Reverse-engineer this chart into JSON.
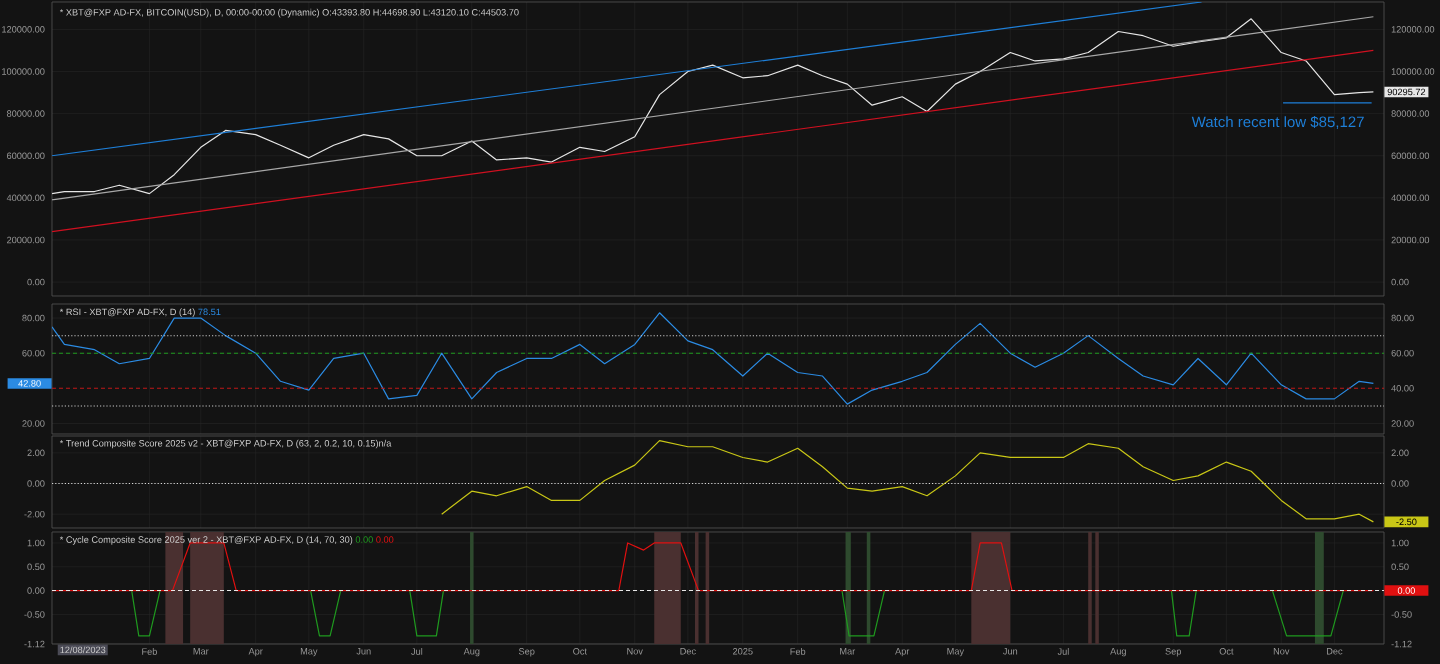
{
  "chart_data": [
    {
      "type": "line",
      "title": "* XBT@FXP AD-FX, BITCOIN(USD), D, 00:00-00:00 (Dynamic) O:43393.80 H:44698.90 L:43120.10 C:44503.70",
      "x": [
        "2023-12-08",
        "2023-12-15",
        "2024-01-01",
        "2024-01-15",
        "2024-02-01",
        "2024-02-15",
        "2024-03-01",
        "2024-03-15",
        "2024-04-01",
        "2024-04-15",
        "2024-05-01",
        "2024-05-15",
        "2024-06-01",
        "2024-06-15",
        "2024-07-01",
        "2024-07-15",
        "2024-08-01",
        "2024-08-15",
        "2024-09-01",
        "2024-09-15",
        "2024-10-01",
        "2024-10-15",
        "2024-11-01",
        "2024-11-15",
        "2024-12-01",
        "2024-12-15",
        "2025-01-01",
        "2025-01-15",
        "2025-02-01",
        "2025-02-15",
        "2025-03-01",
        "2025-03-15",
        "2025-04-01",
        "2025-04-15",
        "2025-05-01",
        "2025-05-15",
        "2025-06-01",
        "2025-06-15",
        "2025-07-01",
        "2025-07-15",
        "2025-08-01",
        "2025-08-15",
        "2025-09-01",
        "2025-09-15",
        "2025-10-01",
        "2025-10-15",
        "2025-11-01",
        "2025-11-15",
        "2025-12-01",
        "2025-12-15",
        "2025-12-23"
      ],
      "series": [
        {
          "color": "#e6e6e6",
          "values": [
            42000,
            43000,
            43000,
            46000,
            42000,
            51000,
            64000,
            72000,
            70000,
            65000,
            59000,
            65000,
            70000,
            68000,
            60000,
            60000,
            67000,
            58000,
            59000,
            57000,
            64000,
            62000,
            69000,
            89000,
            100000,
            103000,
            97000,
            98000,
            103000,
            98000,
            94000,
            84000,
            88000,
            81000,
            94000,
            100000,
            109000,
            105000,
            106000,
            109000,
            119000,
            117000,
            112000,
            114000,
            116000,
            125000,
            109000,
            105000,
            89000,
            90000,
            90295.72
          ]
        },
        {
          "color": "#1e7fd8",
          "x": [
            "2023-12-08",
            "2025-09-17"
          ],
          "values": [
            60000,
            133000
          ]
        },
        {
          "color": "#a8a8a8",
          "x": [
            "2023-12-08",
            "2025-12-23"
          ],
          "values": [
            39000,
            126000
          ]
        },
        {
          "color": "#d01020",
          "x": [
            "2023-12-08",
            "2025-12-23"
          ],
          "values": [
            24000,
            110000
          ]
        },
        {
          "color": "#1e7fd8",
          "x": [
            "2025-11-02",
            "2025-12-22"
          ],
          "values": [
            85127,
            85127
          ]
        }
      ],
      "xlim": [
        "2023-12-08",
        "2025-12-29"
      ],
      "xticks": [
        {
          "value": "2024-02-01",
          "label": null
        },
        {
          "value": "2024-03-01",
          "label": null
        },
        {
          "value": "2024-04-01",
          "label": null
        },
        {
          "value": "2024-05-01",
          "label": null
        },
        {
          "value": "2024-06-01",
          "label": null
        },
        {
          "value": "2024-07-01",
          "label": null
        },
        {
          "value": "2024-08-01",
          "label": null
        },
        {
          "value": "2024-09-01",
          "label": null
        },
        {
          "value": "2024-10-01",
          "label": null
        },
        {
          "value": "2024-11-01",
          "label": null
        },
        {
          "value": "2024-12-01",
          "label": null
        },
        {
          "value": "2025-01-01",
          "label": null
        },
        {
          "value": "2025-02-01",
          "label": null
        },
        {
          "value": "2025-03-01",
          "label": null
        },
        {
          "value": "2025-04-01",
          "label": null
        },
        {
          "value": "2025-05-01",
          "label": null
        },
        {
          "value": "2025-06-01",
          "label": null
        },
        {
          "value": "2025-07-01",
          "label": null
        },
        {
          "value": "2025-08-01",
          "label": null
        },
        {
          "value": "2025-09-01",
          "label": null
        },
        {
          "value": "2025-10-01",
          "label": null
        },
        {
          "value": "2025-11-01",
          "label": null
        },
        {
          "value": "2025-12-01",
          "label": null
        }
      ],
      "ylim": [
        -6600,
        133000
      ],
      "yticks": [
        {
          "value": 0,
          "label": "0.00"
        },
        {
          "value": 20000,
          "label": "20000.00"
        },
        {
          "value": 40000,
          "label": "40000.00"
        },
        {
          "value": 60000,
          "label": "60000.00"
        },
        {
          "value": 80000,
          "label": "80000.00"
        },
        {
          "value": 100000,
          "label": "100000.00"
        },
        {
          "value": 120000,
          "label": "120000.00"
        }
      ],
      "y2lim": [
        -6600,
        133000
      ],
      "y2ticks": [
        {
          "value": 0,
          "label": "0.00"
        },
        {
          "value": 20000,
          "label": "20000.00"
        },
        {
          "value": 40000,
          "label": "40000.00"
        },
        {
          "value": 60000,
          "label": "60000.00"
        },
        {
          "value": 80000,
          "label": "80000.00"
        },
        {
          "value": 100000,
          "label": "100000.00"
        },
        {
          "value": 120000,
          "label": "120000.00"
        }
      ],
      "annotations": [
        "Watch recent low $85,127",
        {
          "text": "90295.72",
          "x": "2025-12-23",
          "y": 90295.72
        }
      ],
      "grid": true,
      "tick_labels": "y",
      "marker": "none",
      "line_style": "solid"
    },
    {
      "type": "line",
      "title": "* RSI - XBT@FXP AD-FX, D (14)",
      "x": [
        "2023-12-08",
        "2023-12-15",
        "2024-01-01",
        "2024-01-15",
        "2024-02-01",
        "2024-02-15",
        "2024-03-01",
        "2024-03-15",
        "2024-04-01",
        "2024-04-15",
        "2024-05-01",
        "2024-05-15",
        "2024-06-01",
        "2024-06-15",
        "2024-07-01",
        "2024-07-15",
        "2024-08-01",
        "2024-08-15",
        "2024-09-01",
        "2024-09-15",
        "2024-10-01",
        "2024-10-15",
        "2024-11-01",
        "2024-11-15",
        "2024-12-01",
        "2024-12-15",
        "2025-01-01",
        "2025-01-15",
        "2025-02-01",
        "2025-02-15",
        "2025-03-01",
        "2025-03-15",
        "2025-04-01",
        "2025-04-15",
        "2025-05-01",
        "2025-05-15",
        "2025-06-01",
        "2025-06-15",
        "2025-07-01",
        "2025-07-15",
        "2025-08-01",
        "2025-08-15",
        "2025-09-01",
        "2025-09-15",
        "2025-10-01",
        "2025-10-15",
        "2025-11-01",
        "2025-11-15",
        "2025-12-01",
        "2025-12-15",
        "2025-12-23"
      ],
      "series": [
        {
          "name": "78.51",
          "color": "#2b8be3",
          "values": [
            75,
            65,
            62,
            54,
            57,
            80,
            80,
            70,
            60,
            44,
            39,
            57,
            60,
            34,
            36,
            60,
            34,
            49,
            57,
            57,
            65,
            54,
            65,
            83,
            67,
            62,
            47,
            60,
            49,
            47,
            31,
            39,
            44,
            49,
            65,
            77,
            60,
            52,
            60,
            70,
            57,
            47,
            42,
            57,
            42,
            60,
            42,
            34,
            34,
            44,
            42.8
          ]
        }
      ],
      "xlim": [
        "2023-12-08",
        "2025-12-29"
      ],
      "xticks": [
        {
          "value": "2024-02-01",
          "label": null
        },
        {
          "value": "2024-03-01",
          "label": null
        },
        {
          "value": "2024-04-01",
          "label": null
        },
        {
          "value": "2024-05-01",
          "label": null
        },
        {
          "value": "2024-06-01",
          "label": null
        },
        {
          "value": "2024-07-01",
          "label": null
        },
        {
          "value": "2024-08-01",
          "label": null
        },
        {
          "value": "2024-09-01",
          "label": null
        },
        {
          "value": "2024-10-01",
          "label": null
        },
        {
          "value": "2024-11-01",
          "label": null
        },
        {
          "value": "2024-12-01",
          "label": null
        },
        {
          "value": "2025-01-01",
          "label": null
        },
        {
          "value": "2025-02-01",
          "label": null
        },
        {
          "value": "2025-03-01",
          "label": null
        },
        {
          "value": "2025-04-01",
          "label": null
        },
        {
          "value": "2025-05-01",
          "label": null
        },
        {
          "value": "2025-06-01",
          "label": null
        },
        {
          "value": "2025-07-01",
          "label": null
        },
        {
          "value": "2025-08-01",
          "label": null
        },
        {
          "value": "2025-09-01",
          "label": null
        },
        {
          "value": "2025-10-01",
          "label": null
        },
        {
          "value": "2025-11-01",
          "label": null
        },
        {
          "value": "2025-12-01",
          "label": null
        }
      ],
      "ylim": [
        14,
        88
      ],
      "yticks": [
        {
          "value": 20,
          "label": "20.00"
        },
        {
          "value": 60,
          "label": "60.00"
        },
        {
          "value": 80,
          "label": "80.00"
        }
      ],
      "y2lim": [
        14,
        88
      ],
      "y2ticks": [
        {
          "value": 20,
          "label": "20.00"
        },
        {
          "value": 40,
          "label": "40.00"
        },
        {
          "value": 60,
          "label": "60.00"
        },
        {
          "value": 80,
          "label": "80.00"
        }
      ],
      "ref_lines": [
        {
          "axis": "y",
          "value": 70,
          "color": "#c8c8c8",
          "line_style": "dotted"
        },
        {
          "axis": "y",
          "value": 60,
          "color": "#1f9a1f",
          "line_style": "dashed"
        },
        {
          "axis": "y",
          "value": 40,
          "color": "#c01818",
          "line_style": "dashed"
        },
        {
          "axis": "y",
          "value": 30,
          "color": "#c8c8c8",
          "line_style": "dotted"
        }
      ],
      "annotations": [
        {
          "text": "42.80",
          "x": "2023-12-08",
          "y": 42.8
        }
      ],
      "grid": true,
      "tick_labels": "y",
      "marker": "none",
      "line_style": "solid"
    },
    {
      "type": "line",
      "title": "* Trend Composite Score 2025 v2 - XBT@FXP AD-FX, D (63, 2, 0.2, 10, 0.15)n/a",
      "series": [
        {
          "color": "#c9c716",
          "x": [
            "2024-07-15",
            "2024-08-01",
            "2024-08-15",
            "2024-09-01",
            "2024-09-15",
            "2024-10-01",
            "2024-10-15",
            "2024-11-01",
            "2024-11-15",
            "2024-12-01",
            "2024-12-15",
            "2025-01-01",
            "2025-01-15",
            "2025-02-01",
            "2025-02-15",
            "2025-03-01",
            "2025-03-15",
            "2025-04-01",
            "2025-04-15",
            "2025-05-01",
            "2025-05-15",
            "2025-06-01",
            "2025-06-15",
            "2025-07-01",
            "2025-07-15",
            "2025-08-01",
            "2025-08-15",
            "2025-09-01",
            "2025-09-15",
            "2025-10-01",
            "2025-10-15",
            "2025-11-01",
            "2025-11-15",
            "2025-12-01",
            "2025-12-15",
            "2025-12-23"
          ],
          "values": [
            -2.0,
            -0.5,
            -0.8,
            -0.2,
            -1.1,
            -1.1,
            0.2,
            1.2,
            2.8,
            2.4,
            2.4,
            1.7,
            1.4,
            2.3,
            1.1,
            -0.3,
            -0.5,
            -0.2,
            -0.8,
            0.5,
            2.0,
            1.7,
            1.7,
            1.7,
            2.6,
            2.3,
            1.1,
            0.2,
            0.5,
            1.4,
            0.8,
            -1.1,
            -2.3,
            -2.3,
            -2.0,
            -2.5
          ]
        }
      ],
      "xlim": [
        "2023-12-08",
        "2025-12-29"
      ],
      "xticks": [
        {
          "value": "2024-02-01",
          "label": null
        },
        {
          "value": "2024-03-01",
          "label": null
        },
        {
          "value": "2024-04-01",
          "label": null
        },
        {
          "value": "2024-05-01",
          "label": null
        },
        {
          "value": "2024-06-01",
          "label": null
        },
        {
          "value": "2024-07-01",
          "label": null
        },
        {
          "value": "2024-08-01",
          "label": null
        },
        {
          "value": "2024-09-01",
          "label": null
        },
        {
          "value": "2024-10-01",
          "label": null
        },
        {
          "value": "2024-11-01",
          "label": null
        },
        {
          "value": "2024-12-01",
          "label": null
        },
        {
          "value": "2025-01-01",
          "label": null
        },
        {
          "value": "2025-02-01",
          "label": null
        },
        {
          "value": "2025-03-01",
          "label": null
        },
        {
          "value": "2025-04-01",
          "label": null
        },
        {
          "value": "2025-05-01",
          "label": null
        },
        {
          "value": "2025-06-01",
          "label": null
        },
        {
          "value": "2025-07-01",
          "label": null
        },
        {
          "value": "2025-08-01",
          "label": null
        },
        {
          "value": "2025-09-01",
          "label": null
        },
        {
          "value": "2025-10-01",
          "label": null
        },
        {
          "value": "2025-11-01",
          "label": null
        },
        {
          "value": "2025-12-01",
          "label": null
        }
      ],
      "ylim": [
        -2.9,
        3.1
      ],
      "yticks": [
        {
          "value": -2,
          "label": "-2.00"
        },
        {
          "value": 0,
          "label": "0.00"
        },
        {
          "value": 2,
          "label": "2.00"
        }
      ],
      "y2lim": [
        -2.9,
        3.1
      ],
      "y2ticks": [
        {
          "value": 0,
          "label": "0.00"
        },
        {
          "value": 2,
          "label": "2.00"
        }
      ],
      "ref_lines": [
        {
          "axis": "y",
          "value": 0,
          "color": "#d8d8d8",
          "line_style": "dotted"
        }
      ],
      "annotations": [
        {
          "text": "-2.50",
          "x": "2025-12-23",
          "y": -2.5
        }
      ],
      "grid": true,
      "tick_labels": "y",
      "marker": "none",
      "line_style": "solid"
    },
    {
      "type": "line",
      "title": "* Cycle Composite Score 2025 ver 2 - XBT@FXP AD-FX, D (14, 70, 30)",
      "series": [
        {
          "name": "0.00",
          "color": "#1f9a1f",
          "x": [
            "2024-01-22",
            "2024-01-26",
            "2024-02-01",
            "2024-02-07",
            "2024-03-01",
            "2024-05-02",
            "2024-05-07",
            "2024-05-13",
            "2024-05-19",
            "2024-06-01",
            "2024-06-27",
            "2024-07-01",
            "2024-07-12",
            "2024-07-16",
            "2024-10-01",
            "2025-02-26",
            "2025-03-02",
            "2025-03-16",
            "2025-03-22",
            "2025-06-01",
            "2025-08-31",
            "2025-09-03",
            "2025-09-10",
            "2025-09-14",
            "2025-10-01",
            "2025-10-27",
            "2025-11-04",
            "2025-11-29",
            "2025-12-06"
          ],
          "values": [
            0,
            -0.95,
            -0.95,
            0,
            null,
            0,
            -0.95,
            -0.95,
            0,
            null,
            0,
            -0.95,
            -0.95,
            0,
            null,
            0,
            -0.95,
            -0.95,
            0,
            null,
            0,
            -0.95,
            -0.95,
            0,
            null,
            0,
            -0.95,
            -0.95,
            0
          ]
        },
        {
          "name": "0.00",
          "color": "#e01010",
          "x": [
            "2023-12-08",
            "2024-02-14",
            "2024-02-24",
            "2024-03-14",
            "2024-03-21",
            "2024-10-23",
            "2024-10-28",
            "2024-11-06",
            "2024-11-12",
            "2024-11-27",
            "2024-12-07",
            "2025-05-10",
            "2025-05-15",
            "2025-05-27",
            "2025-06-02",
            "2025-12-23"
          ],
          "values": [
            0,
            0,
            1,
            1,
            0,
            0,
            1,
            0.85,
            1,
            1,
            0,
            0,
            1,
            1,
            0,
            0
          ]
        }
      ],
      "xlim": [
        "2023-12-08",
        "2025-12-29"
      ],
      "xticks": [
        {
          "value": "2024-02-01",
          "label": "Feb"
        },
        {
          "value": "2024-03-01",
          "label": "Mar"
        },
        {
          "value": "2024-04-01",
          "label": "Apr"
        },
        {
          "value": "2024-05-01",
          "label": "May"
        },
        {
          "value": "2024-06-01",
          "label": "Jun"
        },
        {
          "value": "2024-07-01",
          "label": "Jul"
        },
        {
          "value": "2024-08-01",
          "label": "Aug"
        },
        {
          "value": "2024-09-01",
          "label": "Sep"
        },
        {
          "value": "2024-10-01",
          "label": "Oct"
        },
        {
          "value": "2024-11-01",
          "label": "Nov"
        },
        {
          "value": "2024-12-01",
          "label": "Dec"
        },
        {
          "value": "2025-01-01",
          "label": "2025"
        },
        {
          "value": "2025-02-01",
          "label": "Feb"
        },
        {
          "value": "2025-03-01",
          "label": "Mar"
        },
        {
          "value": "2025-04-01",
          "label": "Apr"
        },
        {
          "value": "2025-05-01",
          "label": "May"
        },
        {
          "value": "2025-06-01",
          "label": "Jun"
        },
        {
          "value": "2025-07-01",
          "label": "Jul"
        },
        {
          "value": "2025-08-01",
          "label": "Aug"
        },
        {
          "value": "2025-09-01",
          "label": "Sep"
        },
        {
          "value": "2025-10-01",
          "label": "Oct"
        },
        {
          "value": "2025-11-01",
          "label": "Nov"
        },
        {
          "value": "2025-12-01",
          "label": "Dec"
        }
      ],
      "ylim": [
        -1.12,
        1.23
      ],
      "yticks": [
        {
          "value": -1.12,
          "label": "-1.12"
        },
        {
          "value": -0.5,
          "label": "-0.50"
        },
        {
          "value": 0,
          "label": "0.00"
        },
        {
          "value": 0.5,
          "label": "0.50"
        },
        {
          "value": 1,
          "label": "1.00"
        }
      ],
      "y2lim": [
        -1.12,
        1.23
      ],
      "y2ticks": [
        {
          "value": -1.12,
          "label": "-1.12"
        },
        {
          "value": -0.5,
          "label": "-0.50"
        },
        {
          "value": 0.5,
          "label": "0.50"
        },
        {
          "value": 1,
          "label": "1.00"
        }
      ],
      "ref_lines": [
        {
          "axis": "y",
          "value": 0,
          "color": "#e8e8e8",
          "line_style": "dashed"
        }
      ],
      "bands": [
        {
          "axis": "x",
          "from": "2024-02-10",
          "to": "2024-02-20",
          "color": "#4a3030"
        },
        {
          "axis": "x",
          "from": "2024-02-24",
          "to": "2024-03-14",
          "color": "#4a3030"
        },
        {
          "axis": "x",
          "from": "2024-11-12",
          "to": "2024-11-27",
          "color": "#4a3030"
        },
        {
          "axis": "x",
          "from": "2024-12-05",
          "to": "2024-12-07",
          "color": "#4a3030"
        },
        {
          "axis": "x",
          "from": "2024-12-11",
          "to": "2024-12-13",
          "color": "#4a3030"
        },
        {
          "axis": "x",
          "from": "2025-05-10",
          "to": "2025-06-01",
          "color": "#4a3030"
        },
        {
          "axis": "x",
          "from": "2025-07-15",
          "to": "2025-07-17",
          "color": "#4a3030"
        },
        {
          "axis": "x",
          "from": "2025-07-19",
          "to": "2025-07-21",
          "color": "#4a3030"
        },
        {
          "axis": "x",
          "from": "2024-07-31",
          "to": "2024-08-02",
          "color": "#2e4a2e"
        },
        {
          "axis": "x",
          "from": "2025-02-28",
          "to": "2025-03-03",
          "color": "#2e4a2e"
        },
        {
          "axis": "x",
          "from": "2025-03-12",
          "to": "2025-03-14",
          "color": "#2e4a2e"
        },
        {
          "axis": "x",
          "from": "2025-11-20",
          "to": "2025-11-25",
          "color": "#2e4a2e"
        }
      ],
      "annotations": [
        "12/08/2023",
        {
          "text": "0.00",
          "x": "2025-12-23",
          "y": 0
        }
      ],
      "grid": true,
      "marker": "none",
      "line_style": "solid"
    }
  ]
}
